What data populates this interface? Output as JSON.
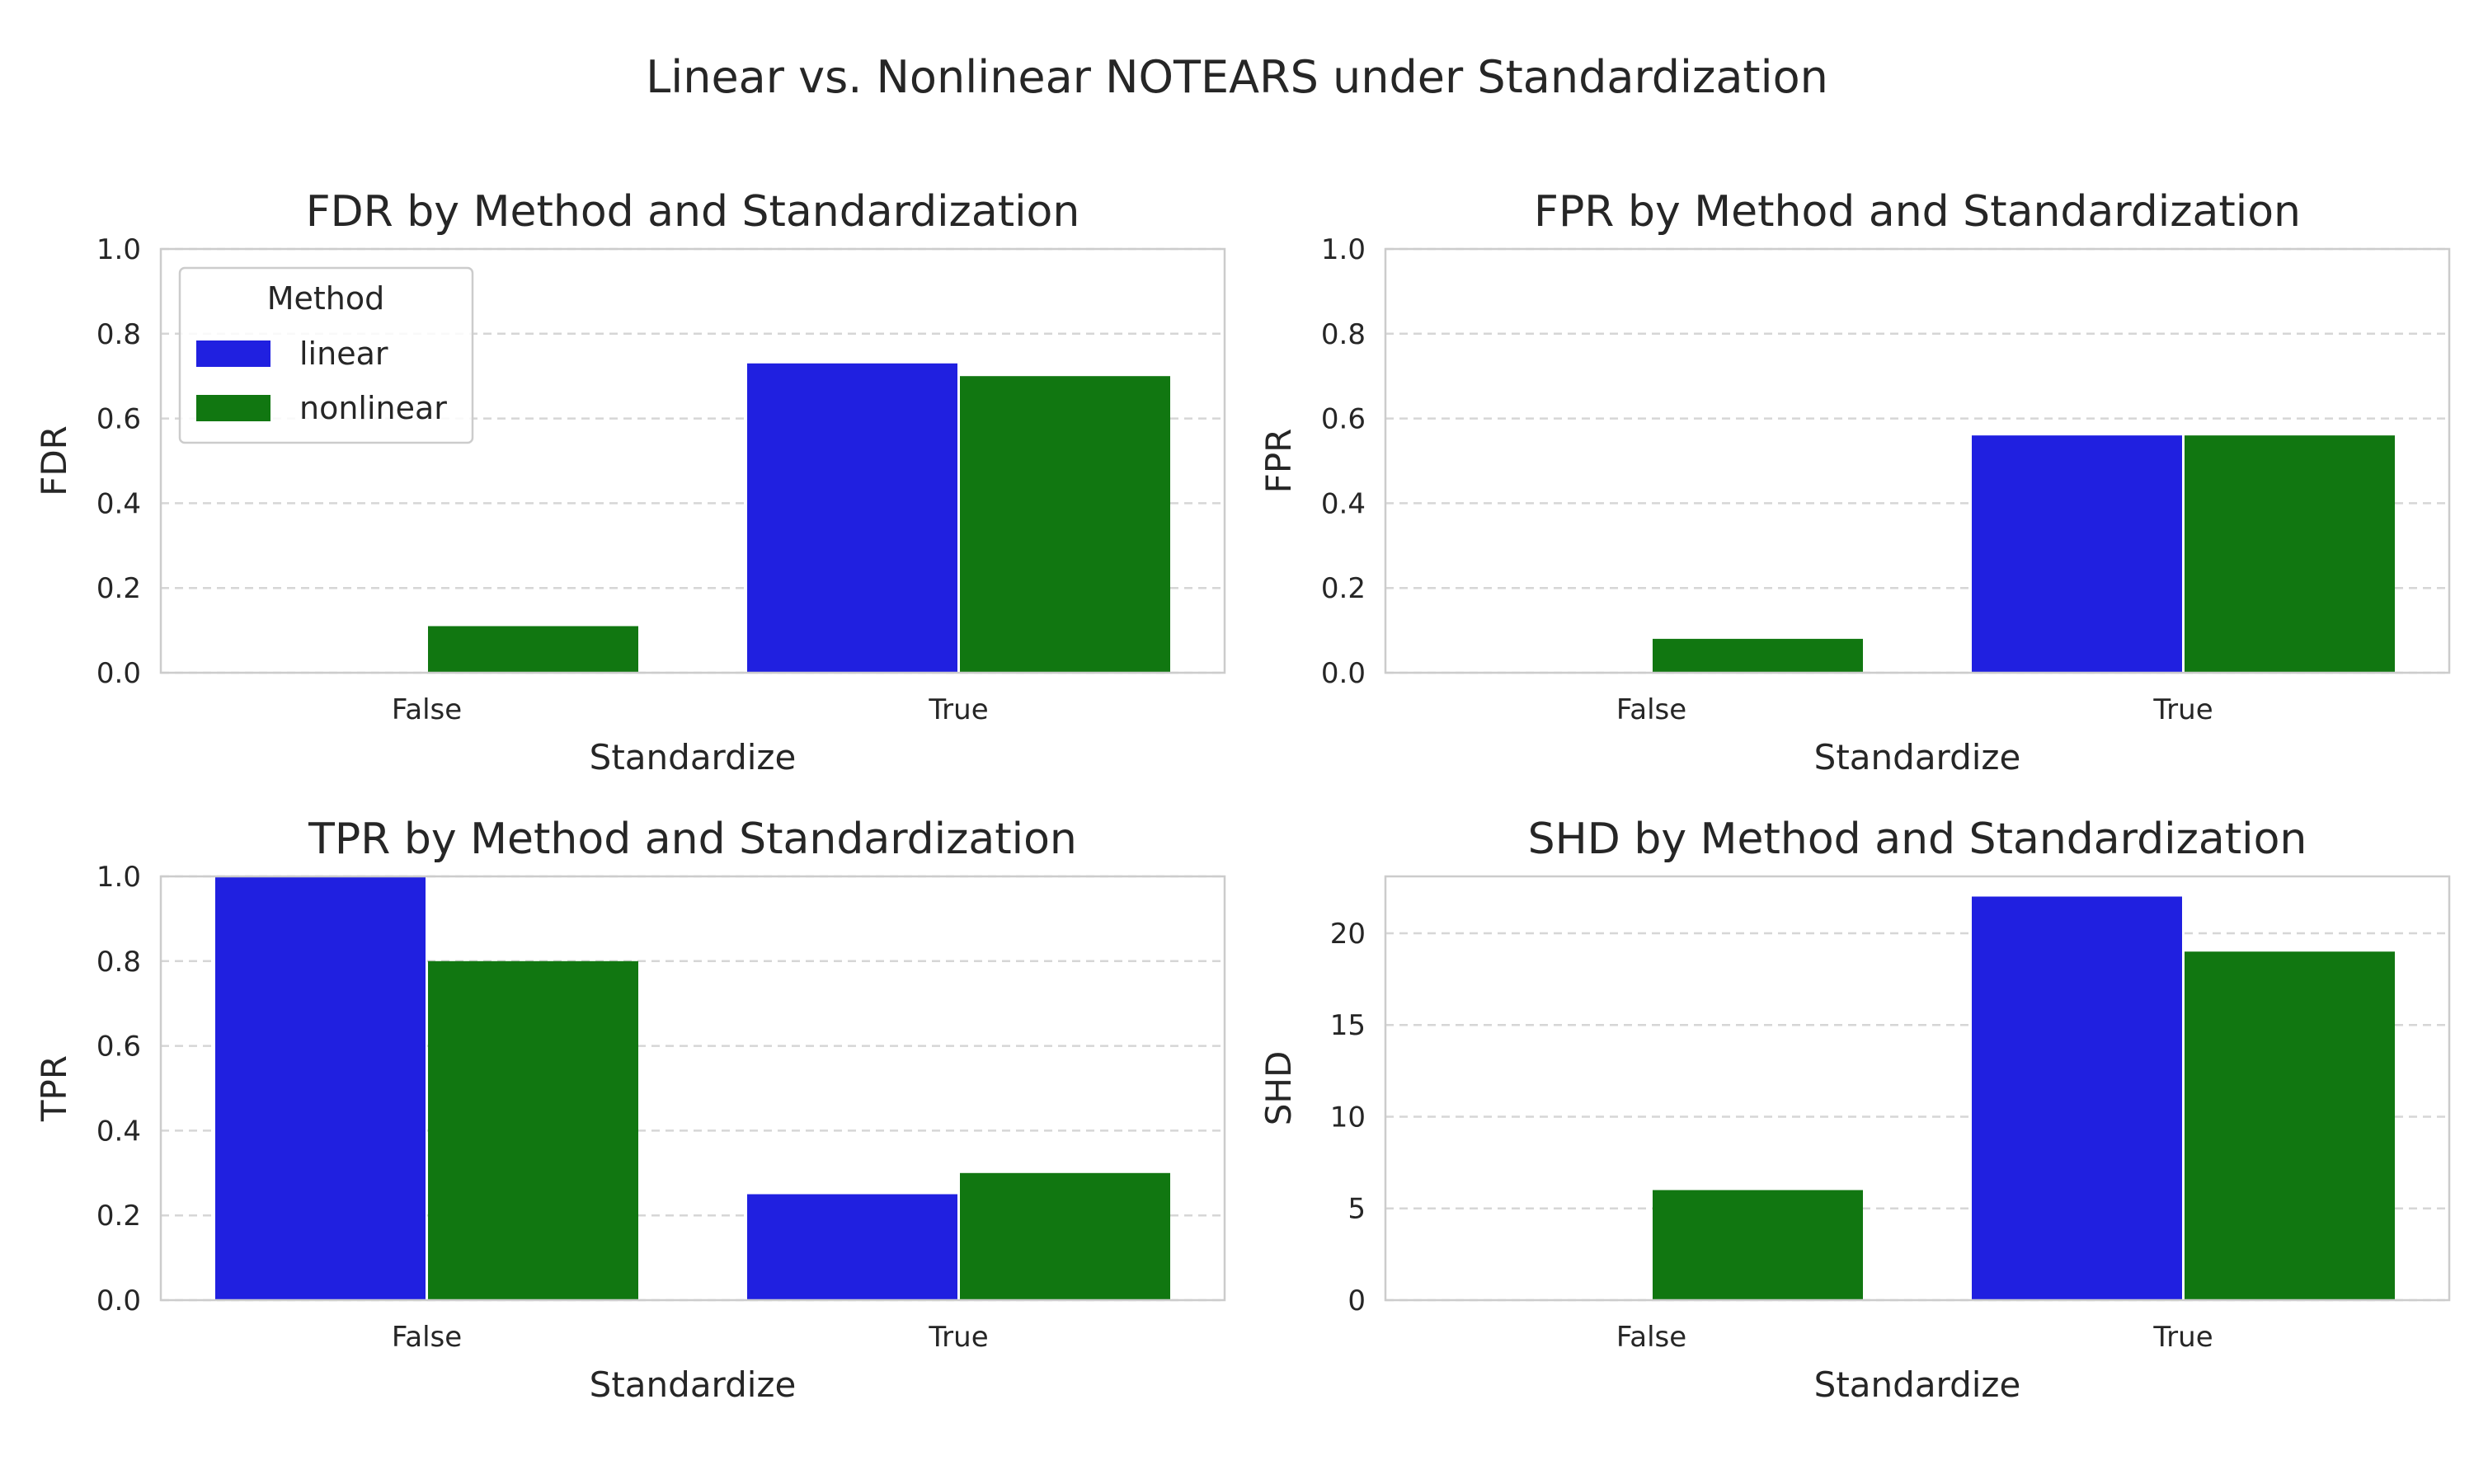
{
  "suptitle": "Linear vs. Nonlinear NOTEARS under Standardization",
  "legend": {
    "title": "Method",
    "placement": "upper-left of first panel",
    "entries": [
      {
        "label": "linear",
        "color": "#2020e0"
      },
      {
        "label": "nonlinear",
        "color": "#117711"
      }
    ]
  },
  "chart_data": [
    {
      "type": "bar",
      "title": "FDR by Method and Standardization",
      "xlabel": "Standardize",
      "ylabel": "FDR",
      "categories": [
        "False",
        "True"
      ],
      "series": [
        {
          "name": "linear",
          "values": [
            0.0,
            0.73
          ]
        },
        {
          "name": "nonlinear",
          "values": [
            0.11,
            0.7
          ]
        }
      ],
      "ylim": [
        0,
        1.0
      ],
      "yticks": [
        0.0,
        0.2,
        0.4,
        0.6,
        0.8,
        1.0
      ],
      "ytick_labels": [
        "0.0",
        "0.2",
        "0.4",
        "0.6",
        "0.8",
        "1.0"
      ],
      "grid": "y-dashed",
      "legend": true
    },
    {
      "type": "bar",
      "title": "FPR by Method and Standardization",
      "xlabel": "Standardize",
      "ylabel": "FPR",
      "categories": [
        "False",
        "True"
      ],
      "series": [
        {
          "name": "linear",
          "values": [
            0.0,
            0.56
          ]
        },
        {
          "name": "nonlinear",
          "values": [
            0.08,
            0.56
          ]
        }
      ],
      "ylim": [
        0,
        1.0
      ],
      "yticks": [
        0.0,
        0.2,
        0.4,
        0.6,
        0.8,
        1.0
      ],
      "ytick_labels": [
        "0.0",
        "0.2",
        "0.4",
        "0.6",
        "0.8",
        "1.0"
      ],
      "grid": "y-dashed",
      "legend": false
    },
    {
      "type": "bar",
      "title": "TPR by Method and Standardization",
      "xlabel": "Standardize",
      "ylabel": "TPR",
      "categories": [
        "False",
        "True"
      ],
      "series": [
        {
          "name": "linear",
          "values": [
            1.0,
            0.25
          ]
        },
        {
          "name": "nonlinear",
          "values": [
            0.8,
            0.3
          ]
        }
      ],
      "ylim": [
        0,
        1.0
      ],
      "yticks": [
        0.0,
        0.2,
        0.4,
        0.6,
        0.8,
        1.0
      ],
      "ytick_labels": [
        "0.0",
        "0.2",
        "0.4",
        "0.6",
        "0.8",
        "1.0"
      ],
      "grid": "y-dashed",
      "legend": false
    },
    {
      "type": "bar",
      "title": "SHD by Method and Standardization",
      "xlabel": "Standardize",
      "ylabel": "SHD",
      "categories": [
        "False",
        "True"
      ],
      "series": [
        {
          "name": "linear",
          "values": [
            0,
            22
          ]
        },
        {
          "name": "nonlinear",
          "values": [
            6,
            19
          ]
        }
      ],
      "ylim": [
        0,
        23.1
      ],
      "yticks": [
        0,
        5,
        10,
        15,
        20
      ],
      "ytick_labels": [
        "0",
        "5",
        "10",
        "15",
        "20"
      ],
      "grid": "y-dashed",
      "legend": false
    }
  ]
}
